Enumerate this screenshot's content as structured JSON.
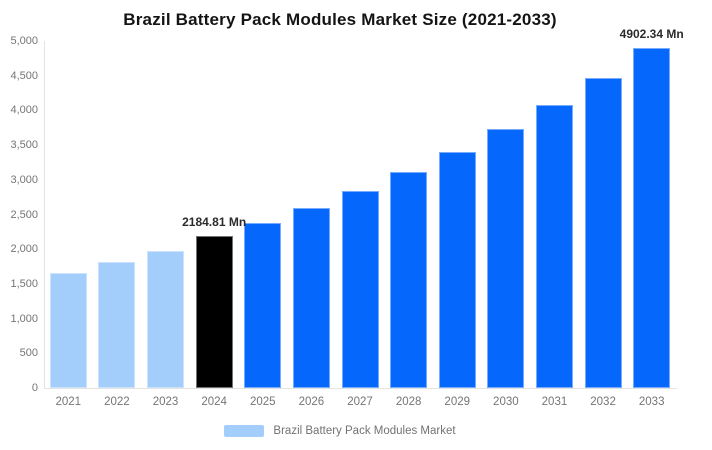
{
  "chart_data": {
    "type": "bar",
    "title": "Brazil Battery Pack Modules Market Size (2021-2033)",
    "unit": "Mn",
    "categories": [
      "2021",
      "2022",
      "2023",
      "2024",
      "2025",
      "2026",
      "2027",
      "2028",
      "2029",
      "2030",
      "2031",
      "2032",
      "2033"
    ],
    "values": [
      1660,
      1810,
      1975,
      2184.81,
      2375,
      2600,
      2845,
      3115,
      3405,
      3730,
      4075,
      4460,
      4902.34
    ],
    "bar_colors": [
      "#A3CDFB",
      "#A3CDFB",
      "#A3CDFB",
      "#000000",
      "#0667FD",
      "#0667FD",
      "#0667FD",
      "#0667FD",
      "#0667FD",
      "#0667FD",
      "#0667FD",
      "#0667FD",
      "#0667FD"
    ],
    "data_labels": [
      {
        "category": "2024",
        "text": "2184.81 Mn"
      },
      {
        "category": "2033",
        "text": "4902.34 Mn"
      }
    ],
    "xlabel": "",
    "ylabel": "",
    "ylim": [
      0,
      5000
    ],
    "ytick_step": 500,
    "ytick_labels": [
      "0",
      "500",
      "1,000",
      "1,500",
      "2,000",
      "2,500",
      "3,000",
      "3,500",
      "4,000",
      "4,500",
      "5,000"
    ],
    "grid": false,
    "legend": {
      "position": "bottom-center",
      "entries": [
        {
          "label": "Brazil Battery Pack Modules Market",
          "color": "#A3CDFB"
        }
      ]
    },
    "colors": {
      "axis_line": "#e3e3e3",
      "tick_text": "#757575",
      "title_text": "#141414",
      "value_label_text": "#2b2b2b",
      "legend_text": "#737373"
    }
  }
}
